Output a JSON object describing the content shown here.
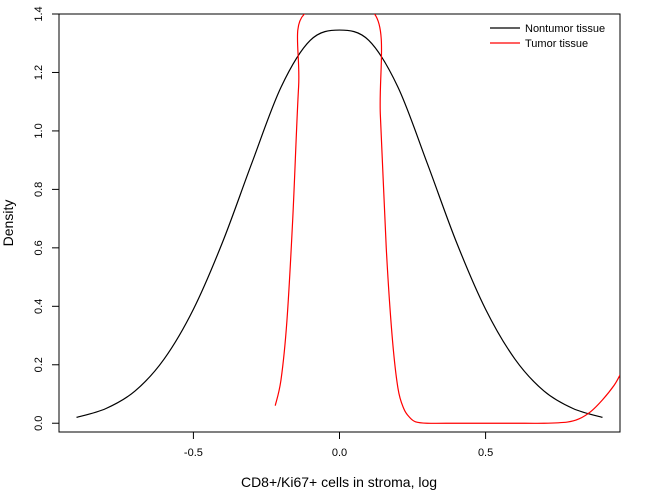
{
  "chart_data": {
    "type": "line",
    "title": "",
    "xlabel": "CD8+/Ki67+ cells in stroma, log",
    "ylabel": "Density",
    "xlim": [
      -0.96,
      0.96
    ],
    "ylim": [
      -0.03,
      1.4
    ],
    "x_ticks": [
      -0.5,
      0.0,
      0.5
    ],
    "x_tick_labels": [
      "-0.5",
      "0.0",
      "0.5"
    ],
    "y_ticks": [
      0.0,
      0.2,
      0.4,
      0.6,
      0.8,
      1.0,
      1.2,
      1.4
    ],
    "y_tick_labels": [
      "0.0",
      "0.2",
      "0.4",
      "0.6",
      "0.8",
      "1.0",
      "1.2",
      "1.4"
    ],
    "grid": false,
    "legend_position": "top-right",
    "series": [
      {
        "name": "Nontumor tissue",
        "color": "#000000",
        "x": [
          -0.9,
          -0.8,
          -0.7,
          -0.6,
          -0.5,
          -0.4,
          -0.3,
          -0.2,
          -0.1,
          0.0,
          0.1,
          0.2,
          0.3,
          0.4,
          0.5,
          0.6,
          0.7,
          0.8,
          0.9
        ],
        "y": [
          0.02,
          0.05,
          0.11,
          0.22,
          0.39,
          0.62,
          0.89,
          1.15,
          1.31,
          1.345,
          1.31,
          1.15,
          0.89,
          0.62,
          0.39,
          0.22,
          0.11,
          0.05,
          0.02
        ]
      },
      {
        "name": "Tumor tissue",
        "color": "#ff0000",
        "x": [
          -0.22,
          -0.2,
          -0.18,
          -0.16,
          -0.14,
          -0.12,
          0.12,
          0.14,
          0.16,
          0.18,
          0.2,
          0.22,
          0.24,
          0.26,
          0.3,
          0.4,
          0.5,
          0.6,
          0.7,
          0.78,
          0.82,
          0.86,
          0.9,
          0.94,
          0.96
        ],
        "y": [
          0.06,
          0.15,
          0.35,
          0.7,
          1.15,
          1.4,
          1.4,
          1.05,
          0.6,
          0.3,
          0.12,
          0.05,
          0.02,
          0.005,
          0.0,
          0.0,
          0.0,
          0.0,
          0.0,
          0.004,
          0.015,
          0.04,
          0.08,
          0.13,
          0.165
        ]
      }
    ]
  }
}
